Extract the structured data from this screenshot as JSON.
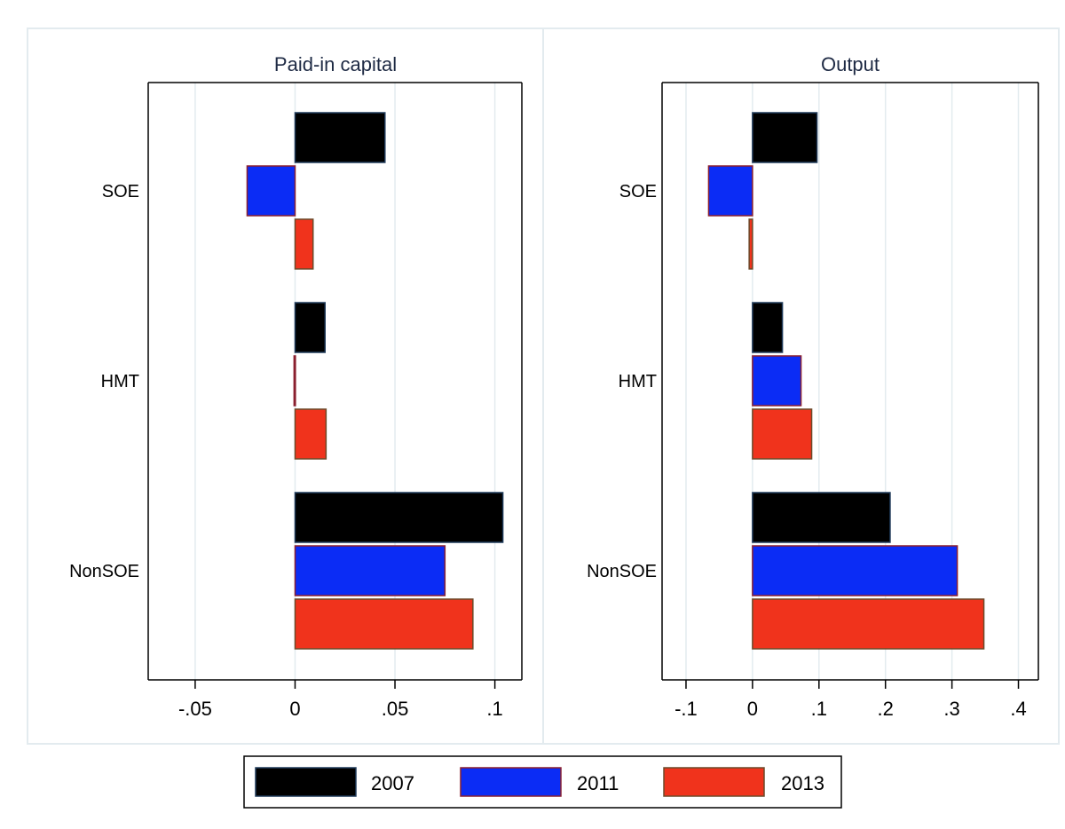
{
  "colors": {
    "2007": "#000000",
    "2011": "#0b2cf5",
    "2013": "#f0331c",
    "outline_2007": "#1f3a5a",
    "outline_2011": "#8a1f2f",
    "outline_2013": "#6b4a2a",
    "grid": "#e3ebef",
    "panel_border": "#e3ebef"
  },
  "chart_data": [
    {
      "type": "bar",
      "orientation": "horizontal",
      "title": "Paid-in capital",
      "categories": [
        "SOE",
        "HMT",
        "NonSOE"
      ],
      "series": [
        {
          "name": "2007",
          "values": [
            0.045,
            0.015,
            0.104
          ]
        },
        {
          "name": "2011",
          "values": [
            -0.024,
            -0.0005,
            0.075
          ]
        },
        {
          "name": "2013",
          "values": [
            0.009,
            0.0155,
            0.089
          ]
        }
      ],
      "xlim": [
        -0.0735,
        0.1135
      ],
      "ticks": [
        -0.05,
        0,
        0.05,
        0.1
      ],
      "tick_labels": [
        "-.05",
        "0",
        ".05",
        ".1"
      ],
      "grid": true
    },
    {
      "type": "bar",
      "orientation": "horizontal",
      "title": "Output",
      "categories": [
        "SOE",
        "HMT",
        "NonSOE"
      ],
      "series": [
        {
          "name": "2007",
          "values": [
            0.097,
            0.045,
            0.207
          ]
        },
        {
          "name": "2011",
          "values": [
            -0.066,
            0.073,
            0.308
          ]
        },
        {
          "name": "2013",
          "values": [
            -0.005,
            0.089,
            0.348
          ]
        }
      ],
      "xlim": [
        -0.136,
        0.43
      ],
      "ticks": [
        -0.1,
        0,
        0.1,
        0.2,
        0.3,
        0.4
      ],
      "tick_labels": [
        "-.1",
        "0",
        ".1",
        ".2",
        ".3",
        ".4"
      ],
      "grid": true
    }
  ],
  "legend": {
    "placement": "bottom",
    "items": [
      "2007",
      "2011",
      "2013"
    ]
  }
}
